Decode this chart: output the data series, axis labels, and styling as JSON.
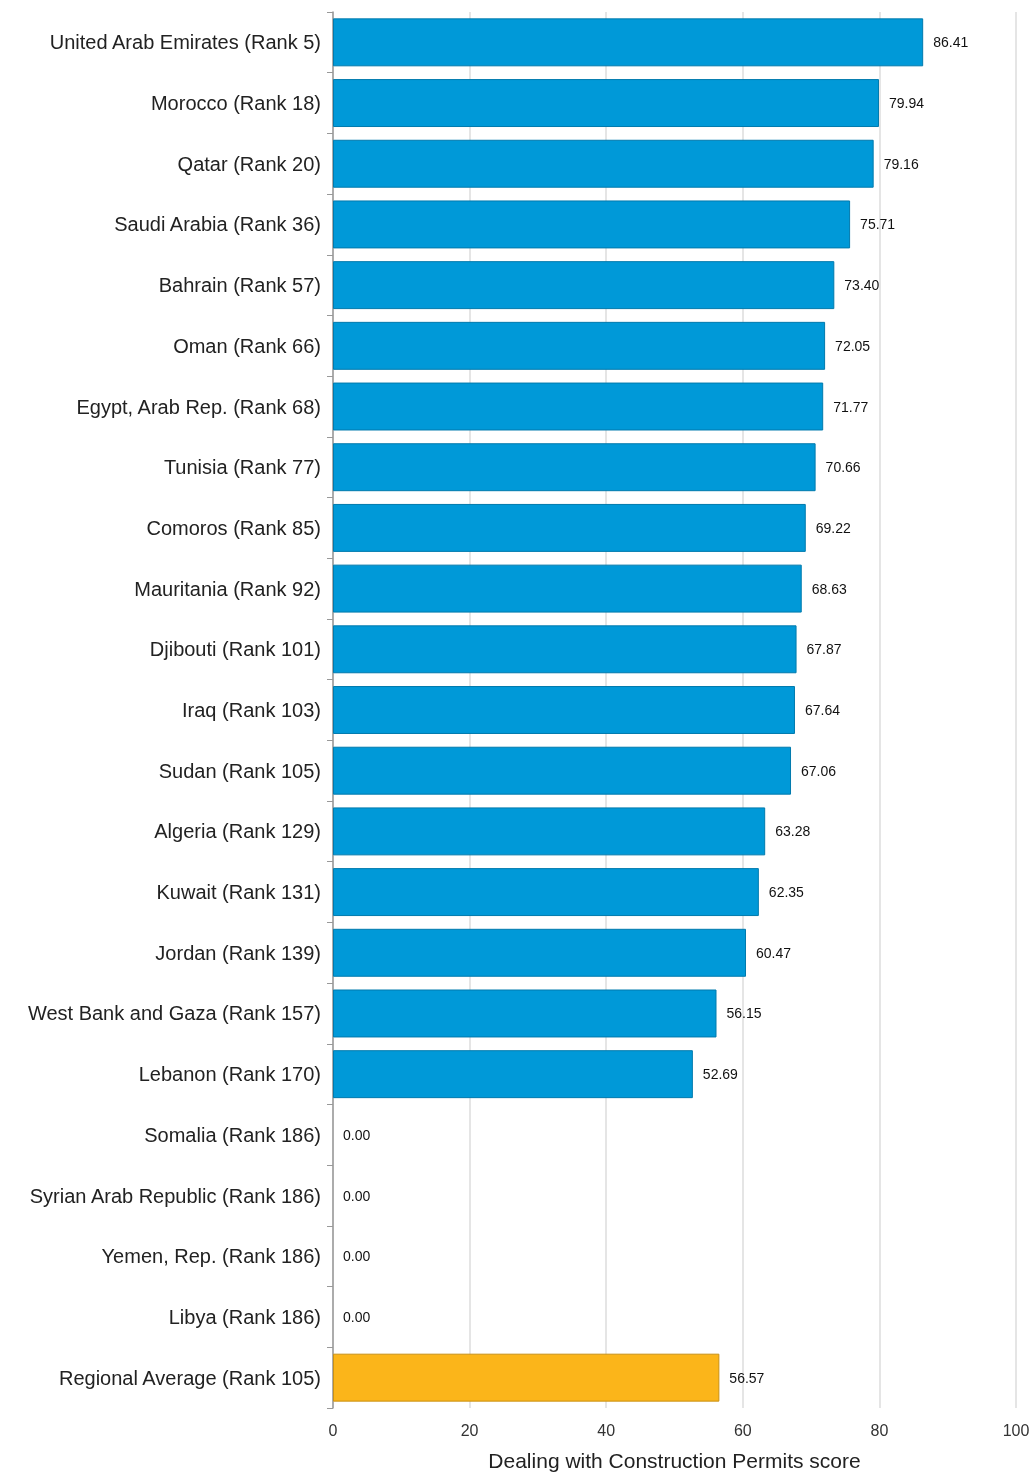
{
  "chart_data": {
    "type": "bar",
    "orientation": "horizontal",
    "xlabel": "Dealing with Construction Permits score",
    "categories": [
      "United Arab Emirates (Rank 5)",
      "Morocco (Rank 18)",
      "Qatar (Rank 20)",
      "Saudi Arabia (Rank 36)",
      "Bahrain (Rank 57)",
      "Oman (Rank 66)",
      "Egypt, Arab Rep. (Rank 68)",
      "Tunisia (Rank 77)",
      "Comoros (Rank 85)",
      "Mauritania (Rank 92)",
      "Djibouti (Rank 101)",
      "Iraq (Rank 103)",
      "Sudan (Rank 105)",
      "Algeria (Rank 129)",
      "Kuwait (Rank 131)",
      "Jordan (Rank 139)",
      "West Bank and Gaza (Rank 157)",
      "Lebanon (Rank 170)",
      "Somalia (Rank 186)",
      "Syrian Arab Republic (Rank 186)",
      "Yemen, Rep. (Rank 186)",
      "Libya (Rank 186)",
      "Regional Average (Rank 105)"
    ],
    "values": [
      86.41,
      79.94,
      79.16,
      75.71,
      73.4,
      72.05,
      71.77,
      70.66,
      69.22,
      68.63,
      67.87,
      67.64,
      67.06,
      63.28,
      62.35,
      60.47,
      56.15,
      52.69,
      0,
      0,
      0,
      0,
      56.57
    ],
    "value_labels": [
      "86.41",
      "79.94",
      "79.16",
      "75.71",
      "73.40",
      "72.05",
      "71.77",
      "70.66",
      "69.22",
      "68.63",
      "67.87",
      "67.64",
      "67.06",
      "63.28",
      "62.35",
      "60.47",
      "56.15",
      "52.69",
      "0.00",
      "0.00",
      "0.00",
      "0.00",
      "56.57"
    ],
    "colors": [
      "#0099d8",
      "#0099d8",
      "#0099d8",
      "#0099d8",
      "#0099d8",
      "#0099d8",
      "#0099d8",
      "#0099d8",
      "#0099d8",
      "#0099d8",
      "#0099d8",
      "#0099d8",
      "#0099d8",
      "#0099d8",
      "#0099d8",
      "#0099d8",
      "#0099d8",
      "#0099d8",
      "#0099d8",
      "#0099d8",
      "#0099d8",
      "#0099d8",
      "#fbb51a"
    ],
    "xlim": [
      0,
      100
    ],
    "xticks": [
      0,
      20,
      40,
      60,
      80,
      100
    ],
    "grid": "x"
  }
}
